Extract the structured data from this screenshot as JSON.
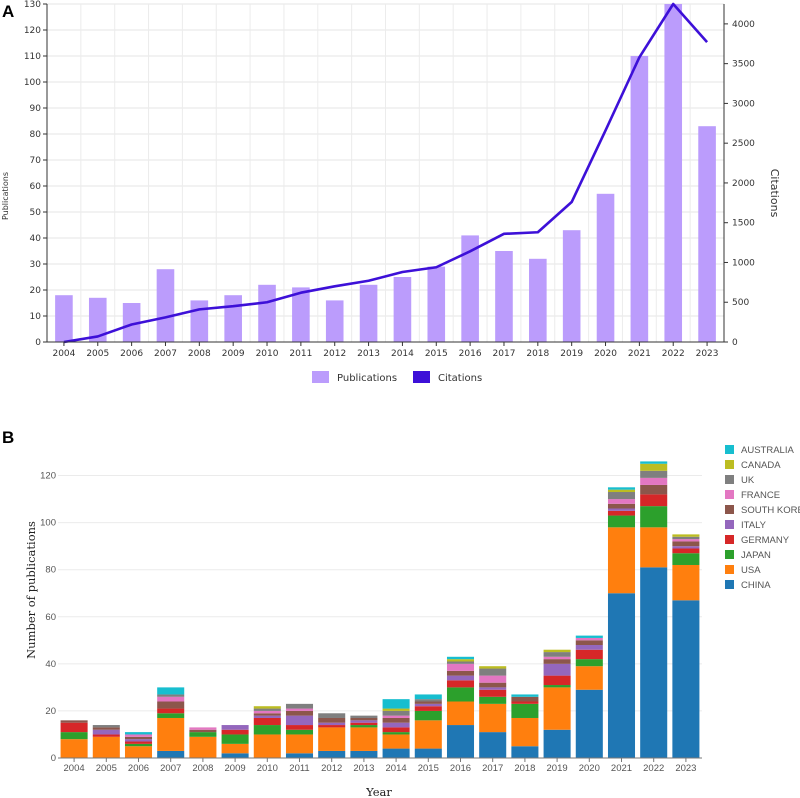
{
  "panels": {
    "a": "A",
    "b": "B"
  },
  "chart_data": [
    {
      "type": "bar",
      "title": "",
      "categories": [
        "2004",
        "2005",
        "2006",
        "2007",
        "2008",
        "2009",
        "2010",
        "2011",
        "2012",
        "2013",
        "2014",
        "2015",
        "2016",
        "2017",
        "2018",
        "2019",
        "2020",
        "2021",
        "2022",
        "2023"
      ],
      "series": [
        {
          "name": "Publications",
          "type": "bar",
          "axis": "left",
          "color": "#bb9cfc",
          "values": [
            18,
            17,
            15,
            28,
            16,
            18,
            22,
            21,
            16,
            22,
            25,
            29,
            41,
            35,
            32,
            43,
            57,
            110,
            130,
            83
          ]
        },
        {
          "name": "Citations",
          "type": "line",
          "axis": "right",
          "color": "#3d10d8",
          "values": [
            0,
            70,
            220,
            310,
            410,
            450,
            500,
            620,
            700,
            770,
            880,
            940,
            1140,
            1360,
            1380,
            1760,
            2660,
            3580,
            4250,
            3770
          ]
        }
      ],
      "ylabel": "Publications",
      "ylabel_right": "Citations",
      "ylim": [
        0,
        130
      ],
      "yticks": [
        0,
        10,
        20,
        30,
        40,
        50,
        60,
        70,
        80,
        90,
        100,
        110,
        120,
        130
      ],
      "ylim_right": [
        0,
        4250
      ],
      "yticks_right": [
        0,
        500,
        1000,
        1500,
        2000,
        2500,
        3000,
        3500,
        4000
      ],
      "legend": "bottom-center",
      "grid": true
    },
    {
      "type": "bar",
      "stacked": true,
      "title": "",
      "xlabel": "Year",
      "ylabel": "Number of publications",
      "ylim": [
        0,
        130
      ],
      "yticks": [
        0,
        20,
        40,
        60,
        80,
        100,
        120
      ],
      "legend": "right",
      "grid": true,
      "categories": [
        "2004",
        "2005",
        "2006",
        "2007",
        "2008",
        "2009",
        "2010",
        "2011",
        "2012",
        "2013",
        "2014",
        "2015",
        "2016",
        "2017",
        "2018",
        "2019",
        "2020",
        "2021",
        "2022",
        "2023"
      ],
      "series": [
        {
          "name": "CHINA",
          "color": "#1f77b4",
          "values": [
            0,
            0,
            0,
            3,
            0,
            2,
            0,
            2,
            3,
            3,
            4,
            4,
            14,
            11,
            5,
            12,
            29,
            70,
            81,
            67
          ]
        },
        {
          "name": "USA",
          "color": "#ff7f0e",
          "values": [
            8,
            9,
            5,
            14,
            9,
            4,
            10,
            8,
            10,
            10,
            6,
            12,
            10,
            12,
            12,
            18,
            10,
            28,
            17,
            15
          ]
        },
        {
          "name": "JAPAN",
          "color": "#2ca02c",
          "values": [
            3,
            0,
            1,
            2,
            2,
            4,
            4,
            2,
            0,
            1,
            1,
            4,
            6,
            3,
            6,
            1,
            3,
            5,
            9,
            5
          ]
        },
        {
          "name": "GERMANY",
          "color": "#d62728",
          "values": [
            4,
            1,
            1,
            2,
            0,
            2,
            3,
            2,
            1,
            1,
            2,
            2,
            3,
            3,
            1,
            4,
            4,
            2,
            5,
            2
          ]
        },
        {
          "name": "ITALY",
          "color": "#9467bd",
          "values": [
            0,
            2,
            1,
            0,
            0,
            2,
            1,
            4,
            1,
            1,
            2,
            1,
            2,
            1,
            0,
            5,
            2,
            1,
            0,
            1
          ]
        },
        {
          "name": "SOUTH KOREA",
          "color": "#8c564b",
          "values": [
            1,
            1,
            1,
            3,
            1,
            0,
            1,
            2,
            2,
            1,
            2,
            1,
            2,
            2,
            2,
            2,
            2,
            2,
            4,
            2
          ]
        },
        {
          "name": "FRANCE",
          "color": "#e377c2",
          "values": [
            0,
            0,
            1,
            2,
            1,
            0,
            1,
            1,
            0,
            0,
            1,
            0,
            3,
            3,
            0,
            1,
            1,
            2,
            3,
            1
          ]
        },
        {
          "name": "UK",
          "color": "#7f7f7f",
          "values": [
            0,
            1,
            0,
            1,
            0,
            0,
            1,
            2,
            2,
            1,
            2,
            1,
            1,
            3,
            0,
            2,
            0,
            3,
            3,
            1
          ]
        },
        {
          "name": "CANADA",
          "color": "#bcbd22",
          "values": [
            0,
            0,
            0,
            0,
            0,
            0,
            1,
            0,
            0,
            0,
            1,
            0,
            1,
            1,
            0,
            1,
            0,
            1,
            3,
            1
          ]
        },
        {
          "name": "AUSTRALIA",
          "color": "#17becf",
          "values": [
            0,
            0,
            1,
            3,
            0,
            0,
            0,
            0,
            0,
            0,
            4,
            2,
            1,
            0,
            1,
            0,
            1,
            1,
            1,
            0
          ]
        }
      ]
    }
  ]
}
